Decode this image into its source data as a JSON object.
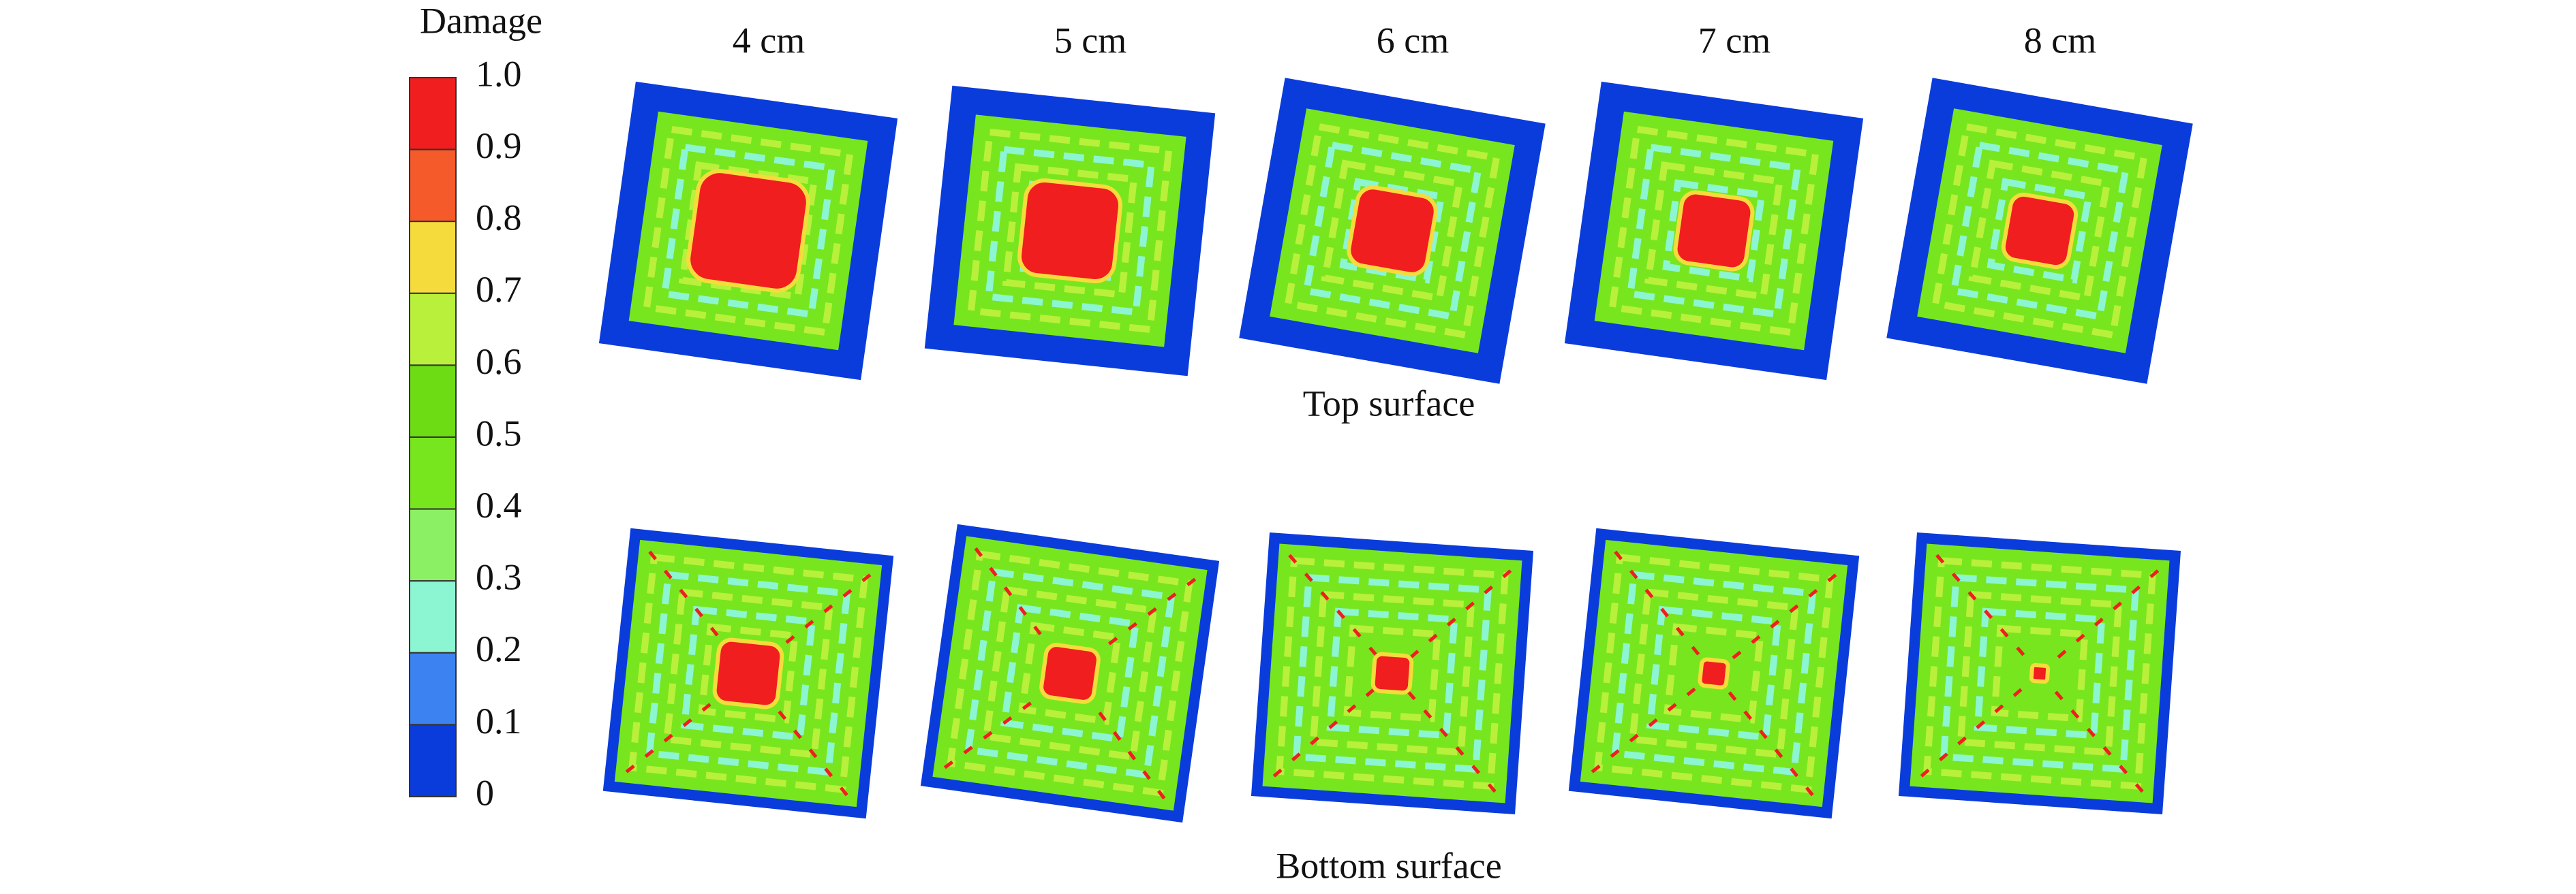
{
  "colorbar": {
    "title": "Damage",
    "ticks": [
      "1.0",
      "0.9",
      "0.8",
      "0.7",
      "0.6",
      "0.5",
      "0.4",
      "0.3",
      "0.2",
      "0.1",
      "0"
    ],
    "colors": [
      "#f01e1e",
      "#f55a2a",
      "#f5dc3c",
      "#b9f03c",
      "#6edc14",
      "#78e61e",
      "#8cf064",
      "#8cf5d2",
      "#3c82f0",
      "#0a3cdc"
    ]
  },
  "columns": [
    "4 cm",
    "5 cm",
    "6 cm",
    "7 cm",
    "8 cm"
  ],
  "rows": [
    "Top surface",
    "Bottom surface"
  ]
}
